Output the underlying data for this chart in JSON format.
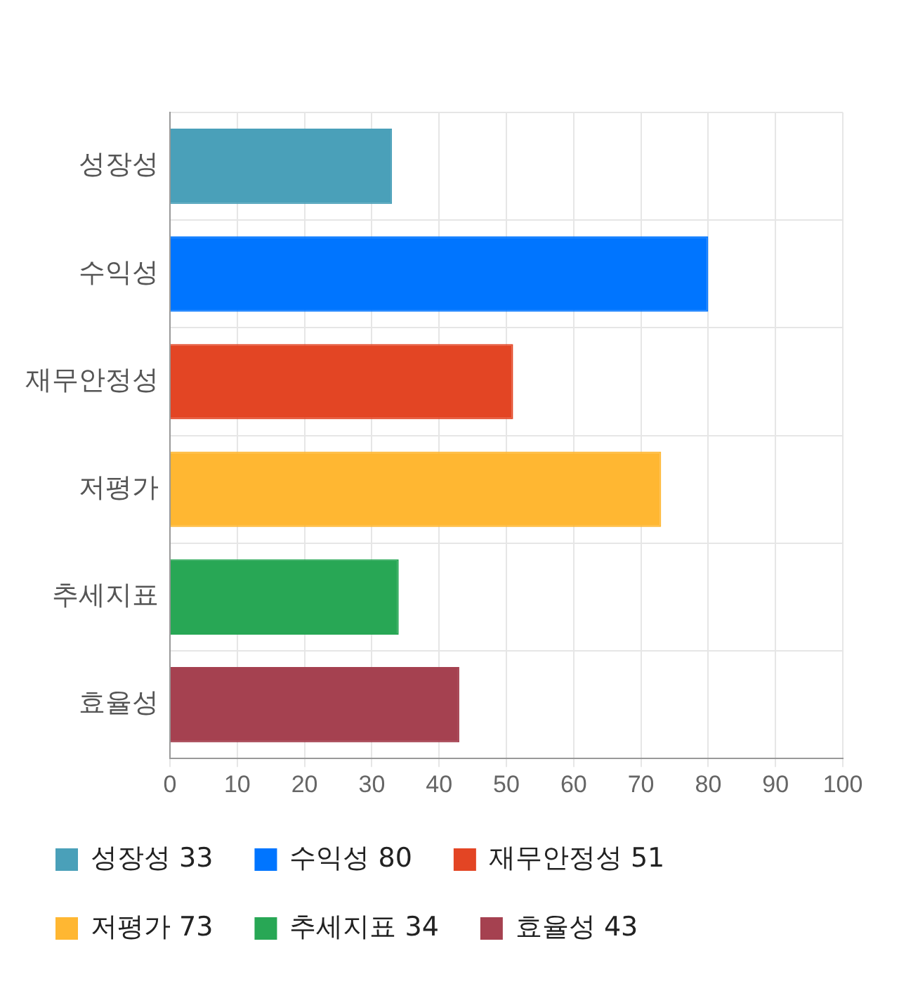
{
  "chart_data": {
    "type": "bar",
    "orientation": "horizontal",
    "categories": [
      "성장성",
      "수익성",
      "재무안정성",
      "저평가",
      "추세지표",
      "효율성"
    ],
    "series": [
      {
        "name": "성장성 33",
        "color": "#4aa0b9",
        "values": [
          33,
          null,
          null,
          null,
          null,
          null
        ]
      },
      {
        "name": "수익성 80",
        "color": "#0075ff",
        "values": [
          null,
          80,
          null,
          null,
          null,
          null
        ]
      },
      {
        "name": "재무안정성 51",
        "color": "#e34524",
        "values": [
          null,
          null,
          51,
          null,
          null,
          null
        ]
      },
      {
        "name": "저평가 73",
        "color": "#ffb732",
        "values": [
          null,
          null,
          null,
          73,
          null,
          null
        ]
      },
      {
        "name": "추세지표 34",
        "color": "#28a755",
        "values": [
          null,
          null,
          null,
          null,
          34,
          null
        ]
      },
      {
        "name": "효율성 43",
        "color": "#a54150",
        "values": [
          null,
          null,
          null,
          null,
          null,
          43
        ]
      }
    ],
    "xlim": [
      0,
      100
    ],
    "xticks": [
      0,
      10,
      20,
      30,
      40,
      50,
      60,
      70,
      80,
      90,
      100
    ],
    "grid": true,
    "legend": "bottom"
  }
}
